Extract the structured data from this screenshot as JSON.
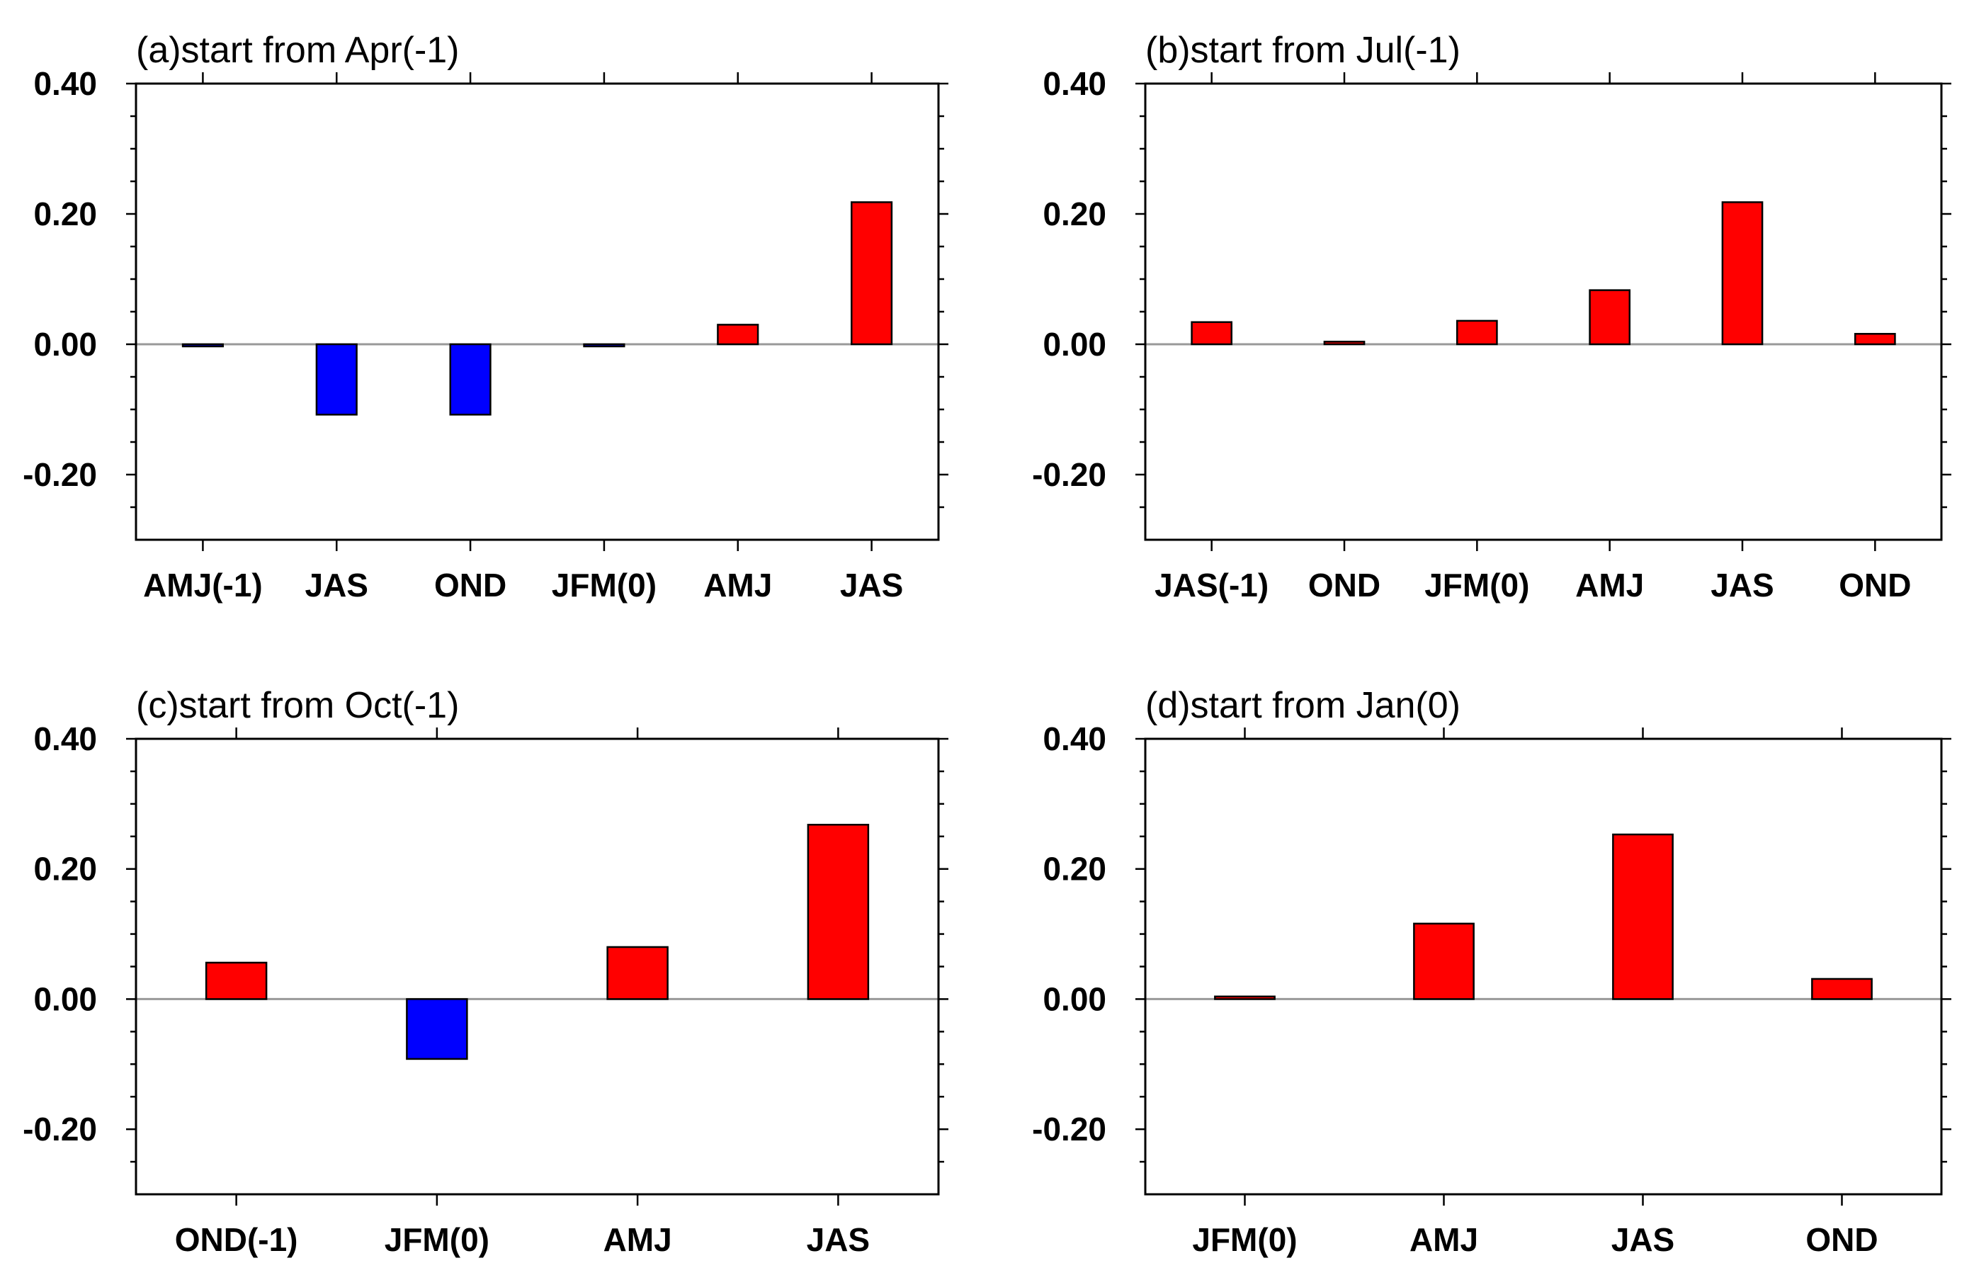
{
  "chart_data": [
    {
      "type": "bar",
      "title": "(a)start from Apr(-1)",
      "categories": [
        "AMJ(-1)",
        "JAS",
        "OND",
        "JFM(0)",
        "AMJ",
        "JAS"
      ],
      "values": [
        -0.003,
        -0.108,
        -0.108,
        -0.003,
        0.03,
        0.218
      ],
      "ylim": [
        -0.3,
        0.4
      ],
      "yticks": [
        "0.40",
        "0.20",
        "0.00",
        "-0.20"
      ],
      "ytick_values": [
        0.4,
        0.2,
        0.0,
        -0.2
      ],
      "positive_color": "#ff0000",
      "negative_color": "#0000ff"
    },
    {
      "type": "bar",
      "title": "(b)start from Jul(-1)",
      "categories": [
        "JAS(-1)",
        "OND",
        "JFM(0)",
        "AMJ",
        "JAS",
        "OND"
      ],
      "values": [
        0.034,
        0.004,
        0.036,
        0.083,
        0.218,
        0.016
      ],
      "ylim": [
        -0.3,
        0.4
      ],
      "yticks": [
        "0.40",
        "0.20",
        "0.00",
        "-0.20"
      ],
      "ytick_values": [
        0.4,
        0.2,
        0.0,
        -0.2
      ],
      "positive_color": "#ff0000",
      "negative_color": "#0000ff"
    },
    {
      "type": "bar",
      "title": "(c)start from Oct(-1)",
      "categories": [
        "OND(-1)",
        "JFM(0)",
        "AMJ",
        "JAS"
      ],
      "values": [
        0.056,
        -0.092,
        0.08,
        0.268
      ],
      "ylim": [
        -0.3,
        0.4
      ],
      "yticks": [
        "0.40",
        "0.20",
        "0.00",
        "-0.20"
      ],
      "ytick_values": [
        0.4,
        0.2,
        0.0,
        -0.2
      ],
      "positive_color": "#ff0000",
      "negative_color": "#0000ff"
    },
    {
      "type": "bar",
      "title": "(d)start from Jan(0)",
      "categories": [
        "JFM(0)",
        "AMJ",
        "JAS",
        "OND"
      ],
      "values": [
        0.004,
        0.116,
        0.253,
        0.031
      ],
      "ylim": [
        -0.3,
        0.4
      ],
      "yticks": [
        "0.40",
        "0.20",
        "0.00",
        "-0.20"
      ],
      "ytick_values": [
        0.4,
        0.2,
        0.0,
        -0.2
      ],
      "positive_color": "#ff0000",
      "negative_color": "#0000ff"
    }
  ]
}
